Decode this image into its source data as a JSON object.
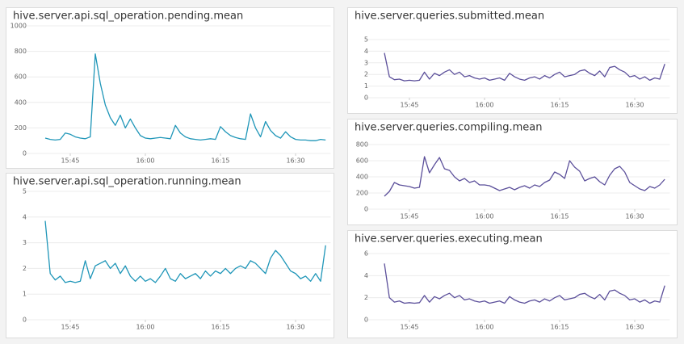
{
  "chart_data": [
    {
      "type": "line",
      "title": "hive.server.api.sql_operation.pending.mean",
      "color": "#1f96b8",
      "x": [
        "15:40",
        "15:41",
        "15:42",
        "15:43",
        "15:44",
        "15:45",
        "15:46",
        "15:47",
        "15:48",
        "15:49",
        "15:50",
        "15:51",
        "15:52",
        "15:53",
        "15:54",
        "15:55",
        "15:56",
        "15:57",
        "15:58",
        "15:59",
        "16:00",
        "16:01",
        "16:02",
        "16:03",
        "16:04",
        "16:05",
        "16:06",
        "16:07",
        "16:08",
        "16:09",
        "16:10",
        "16:11",
        "16:12",
        "16:13",
        "16:14",
        "16:15",
        "16:16",
        "16:17",
        "16:18",
        "16:19",
        "16:20",
        "16:21",
        "16:22",
        "16:23",
        "16:24",
        "16:25",
        "16:26",
        "16:27",
        "16:28",
        "16:29",
        "16:30",
        "16:31",
        "16:32",
        "16:33",
        "16:34",
        "16:35",
        "16:36"
      ],
      "values": [
        120,
        110,
        105,
        110,
        160,
        150,
        130,
        120,
        115,
        130,
        780,
        550,
        380,
        280,
        220,
        300,
        200,
        270,
        200,
        140,
        120,
        115,
        120,
        125,
        120,
        115,
        220,
        160,
        130,
        115,
        110,
        105,
        110,
        115,
        110,
        210,
        170,
        140,
        125,
        115,
        110,
        310,
        200,
        130,
        250,
        180,
        140,
        120,
        170,
        130,
        110,
        105,
        105,
        100,
        100,
        110,
        105
      ],
      "xlim": [
        "15:37",
        "16:37"
      ],
      "xticks": [
        "15:45",
        "16:00",
        "16:15",
        "16:30"
      ],
      "ylim": [
        0,
        1000
      ],
      "yticks": [
        0,
        200,
        400,
        600,
        800,
        1000
      ],
      "grid": true
    },
    {
      "type": "line",
      "title": "hive.server.api.sql_operation.running.mean",
      "color": "#1f96b8",
      "x": [
        "15:40",
        "15:41",
        "15:42",
        "15:43",
        "15:44",
        "15:45",
        "15:46",
        "15:47",
        "15:48",
        "15:49",
        "15:50",
        "15:51",
        "15:52",
        "15:53",
        "15:54",
        "15:55",
        "15:56",
        "15:57",
        "15:58",
        "15:59",
        "16:00",
        "16:01",
        "16:02",
        "16:03",
        "16:04",
        "16:05",
        "16:06",
        "16:07",
        "16:08",
        "16:09",
        "16:10",
        "16:11",
        "16:12",
        "16:13",
        "16:14",
        "16:15",
        "16:16",
        "16:17",
        "16:18",
        "16:19",
        "16:20",
        "16:21",
        "16:22",
        "16:23",
        "16:24",
        "16:25",
        "16:26",
        "16:27",
        "16:28",
        "16:29",
        "16:30",
        "16:31",
        "16:32",
        "16:33",
        "16:34",
        "16:35",
        "16:36"
      ],
      "values": [
        3.85,
        1.8,
        1.55,
        1.7,
        1.45,
        1.5,
        1.45,
        1.5,
        2.3,
        1.6,
        2.1,
        2.2,
        2.3,
        2.0,
        2.2,
        1.8,
        2.1,
        1.7,
        1.5,
        1.7,
        1.5,
        1.6,
        1.45,
        1.7,
        2.0,
        1.6,
        1.5,
        1.8,
        1.6,
        1.7,
        1.8,
        1.6,
        1.9,
        1.7,
        1.9,
        1.8,
        2.0,
        1.8,
        2.0,
        2.1,
        2.0,
        2.3,
        2.2,
        2.0,
        1.8,
        2.4,
        2.7,
        2.5,
        2.2,
        1.9,
        1.8,
        1.6,
        1.7,
        1.5,
        1.8,
        1.5,
        2.9
      ],
      "xlim": [
        "15:37",
        "16:37"
      ],
      "xticks": [
        "15:45",
        "16:00",
        "16:15",
        "16:30"
      ],
      "ylim": [
        0,
        5
      ],
      "yticks": [
        0,
        1,
        2,
        3,
        4,
        5
      ],
      "grid": true
    },
    {
      "type": "line",
      "title": "hive.server.queries.submitted.mean",
      "color": "#5b4f9a",
      "x": [
        "15:40",
        "15:41",
        "15:42",
        "15:43",
        "15:44",
        "15:45",
        "15:46",
        "15:47",
        "15:48",
        "15:49",
        "15:50",
        "15:51",
        "15:52",
        "15:53",
        "15:54",
        "15:55",
        "15:56",
        "15:57",
        "15:58",
        "15:59",
        "16:00",
        "16:01",
        "16:02",
        "16:03",
        "16:04",
        "16:05",
        "16:06",
        "16:07",
        "16:08",
        "16:09",
        "16:10",
        "16:11",
        "16:12",
        "16:13",
        "16:14",
        "16:15",
        "16:16",
        "16:17",
        "16:18",
        "16:19",
        "16:20",
        "16:21",
        "16:22",
        "16:23",
        "16:24",
        "16:25",
        "16:26",
        "16:27",
        "16:28",
        "16:29",
        "16:30",
        "16:31",
        "16:32",
        "16:33",
        "16:34",
        "16:35",
        "16:36"
      ],
      "values": [
        3.85,
        1.8,
        1.55,
        1.6,
        1.45,
        1.5,
        1.45,
        1.5,
        2.2,
        1.6,
        2.1,
        1.9,
        2.2,
        2.4,
        2.0,
        2.2,
        1.8,
        1.9,
        1.7,
        1.6,
        1.7,
        1.5,
        1.6,
        1.7,
        1.5,
        2.1,
        1.8,
        1.6,
        1.5,
        1.7,
        1.8,
        1.6,
        1.9,
        1.7,
        2.0,
        2.2,
        1.8,
        1.9,
        2.0,
        2.3,
        2.4,
        2.1,
        1.9,
        2.3,
        1.8,
        2.6,
        2.7,
        2.4,
        2.2,
        1.8,
        1.9,
        1.6,
        1.8,
        1.5,
        1.7,
        1.6,
        2.9
      ],
      "xlim": [
        "15:37",
        "16:37"
      ],
      "xticks": [
        "15:45",
        "16:00",
        "16:15",
        "16:30"
      ],
      "ylim": [
        0,
        5
      ],
      "yticks": [
        0,
        1,
        2,
        3,
        4,
        5
      ],
      "grid": true
    },
    {
      "type": "line",
      "title": "hive.server.queries.compiling.mean",
      "color": "#5b4f9a",
      "x": [
        "15:40",
        "15:41",
        "15:42",
        "15:43",
        "15:44",
        "15:45",
        "15:46",
        "15:47",
        "15:48",
        "15:49",
        "15:50",
        "15:51",
        "15:52",
        "15:53",
        "15:54",
        "15:55",
        "15:56",
        "15:57",
        "15:58",
        "15:59",
        "16:00",
        "16:01",
        "16:02",
        "16:03",
        "16:04",
        "16:05",
        "16:06",
        "16:07",
        "16:08",
        "16:09",
        "16:10",
        "16:11",
        "16:12",
        "16:13",
        "16:14",
        "16:15",
        "16:16",
        "16:17",
        "16:18",
        "16:19",
        "16:20",
        "16:21",
        "16:22",
        "16:23",
        "16:24",
        "16:25",
        "16:26",
        "16:27",
        "16:28",
        "16:29",
        "16:30",
        "16:31",
        "16:32",
        "16:33",
        "16:34",
        "16:35",
        "16:36"
      ],
      "values": [
        160,
        220,
        330,
        300,
        290,
        280,
        260,
        270,
        650,
        450,
        550,
        640,
        500,
        480,
        400,
        350,
        380,
        330,
        350,
        300,
        300,
        290,
        260,
        230,
        250,
        270,
        240,
        270,
        290,
        260,
        300,
        280,
        330,
        360,
        460,
        430,
        380,
        600,
        520,
        470,
        350,
        380,
        400,
        340,
        300,
        420,
        500,
        530,
        460,
        330,
        290,
        250,
        230,
        280,
        260,
        300,
        370
      ],
      "xlim": [
        "15:37",
        "16:37"
      ],
      "xticks": [
        "15:45",
        "16:00",
        "16:15",
        "16:30"
      ],
      "ylim": [
        0,
        800
      ],
      "yticks": [
        0,
        200,
        400,
        600,
        800
      ],
      "grid": true
    },
    {
      "type": "line",
      "title": "hive.server.queries.executing.mean",
      "color": "#5b4f9a",
      "x": [
        "15:40",
        "15:41",
        "15:42",
        "15:43",
        "15:44",
        "15:45",
        "15:46",
        "15:47",
        "15:48",
        "15:49",
        "15:50",
        "15:51",
        "15:52",
        "15:53",
        "15:54",
        "15:55",
        "15:56",
        "15:57",
        "15:58",
        "15:59",
        "16:00",
        "16:01",
        "16:02",
        "16:03",
        "16:04",
        "16:05",
        "16:06",
        "16:07",
        "16:08",
        "16:09",
        "16:10",
        "16:11",
        "16:12",
        "16:13",
        "16:14",
        "16:15",
        "16:16",
        "16:17",
        "16:18",
        "16:19",
        "16:20",
        "16:21",
        "16:22",
        "16:23",
        "16:24",
        "16:25",
        "16:26",
        "16:27",
        "16:28",
        "16:29",
        "16:30",
        "16:31",
        "16:32",
        "16:33",
        "16:34",
        "16:35",
        "16:36"
      ],
      "values": [
        5.1,
        2.0,
        1.6,
        1.7,
        1.5,
        1.55,
        1.5,
        1.55,
        2.2,
        1.6,
        2.1,
        1.9,
        2.2,
        2.4,
        2.0,
        2.2,
        1.8,
        1.9,
        1.7,
        1.6,
        1.7,
        1.5,
        1.6,
        1.7,
        1.5,
        2.1,
        1.8,
        1.6,
        1.5,
        1.7,
        1.8,
        1.6,
        1.9,
        1.7,
        2.0,
        2.2,
        1.8,
        1.9,
        2.0,
        2.3,
        2.4,
        2.1,
        1.9,
        2.3,
        1.8,
        2.6,
        2.7,
        2.4,
        2.2,
        1.8,
        1.9,
        1.6,
        1.8,
        1.5,
        1.7,
        1.6,
        3.1
      ],
      "xlim": [
        "15:37",
        "16:37"
      ],
      "xticks": [
        "15:45",
        "16:00",
        "16:15",
        "16:30"
      ],
      "ylim": [
        0,
        6
      ],
      "yticks": [
        0,
        2,
        4,
        6
      ],
      "grid": true
    }
  ]
}
